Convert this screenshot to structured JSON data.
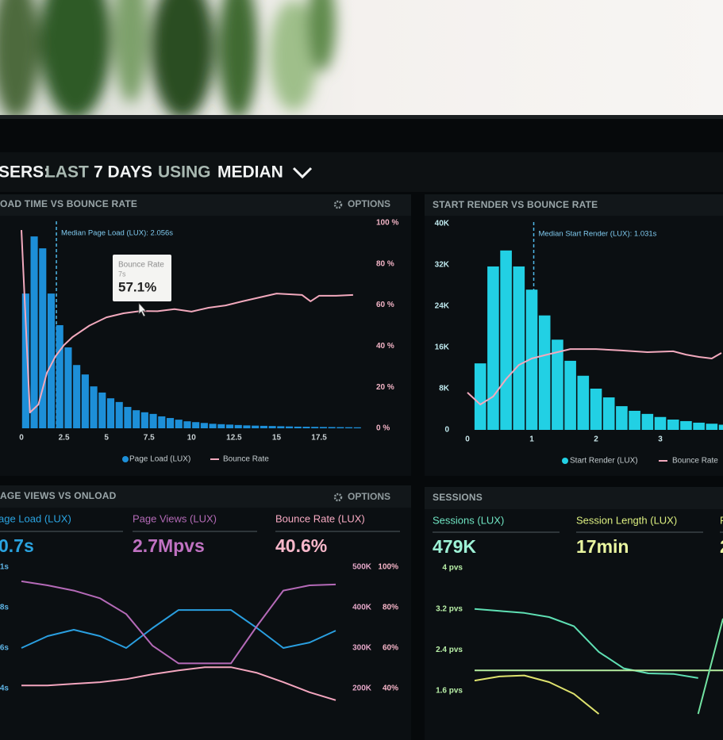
{
  "dashboard": {
    "title_parts": [
      "SERS:",
      "LAST",
      "7 DAYS",
      "USING",
      "MEDIAN"
    ]
  },
  "chart_data": [
    {
      "type": "histogram",
      "title": "OAD TIME VS BOUNCE RATE",
      "options": "OPTIONS",
      "bins": [
        0,
        0.5,
        1,
        1.5,
        2,
        2.5,
        3,
        3.5,
        4,
        4.5,
        5,
        5.5,
        6,
        6.5,
        7,
        7.5,
        8,
        8.5,
        9,
        9.5,
        10,
        10.5,
        11,
        11.5,
        12,
        12.5,
        13,
        13.5,
        14,
        14.5,
        15,
        15.5,
        16,
        16.5,
        17,
        17.5,
        18,
        18.5,
        19,
        19.5,
        20
      ],
      "series": [
        {
          "name": "Page Load (LUX)",
          "color": "#1d8fd8",
          "values": [
            32800,
            46700,
            43800,
            32800,
            25100,
            19700,
            15400,
            13100,
            10200,
            8700,
            7300,
            6400,
            5200,
            4400,
            3900,
            3500,
            2900,
            2500,
            2100,
            1700,
            1500,
            1300,
            1100,
            1000,
            900,
            800,
            700,
            650,
            600,
            550,
            500,
            450,
            400,
            380,
            350,
            320,
            300,
            280,
            260,
            240
          ]
        },
        {
          "name": "Bounce Rate",
          "color": "#f2a9bd",
          "axis": "y2",
          "x": [
            0,
            0.5,
            1,
            1.5,
            2,
            2.5,
            3,
            4,
            5,
            6,
            7,
            8,
            9,
            10,
            11,
            12,
            13,
            14,
            15,
            16.5,
            17,
            17.5,
            18.5,
            19.5
          ],
          "values": [
            96.5,
            7.7,
            11.6,
            27,
            35,
            40.5,
            44.4,
            50,
            54,
            56,
            57.1,
            57,
            58,
            56.8,
            58.7,
            59.8,
            61.8,
            63.7,
            65.6,
            64.9,
            61.8,
            64.5,
            64.5,
            64.9
          ]
        }
      ],
      "xlim": [
        -0.2,
        20.2
      ],
      "xticks": [
        0,
        2.5,
        5,
        7.5,
        10,
        12.5,
        15,
        17.5
      ],
      "ylim": [
        0,
        50000
      ],
      "y2lim": [
        0,
        100
      ],
      "y2ticks": [
        {
          "value": 0,
          "label": "0 %"
        },
        {
          "value": 20,
          "label": "20 %"
        },
        {
          "value": 40,
          "label": "40 %"
        },
        {
          "value": 60,
          "label": "60 %"
        },
        {
          "value": 80,
          "label": "80 %"
        },
        {
          "value": 100,
          "label": "100 %"
        }
      ],
      "annotation": {
        "x": 2.056,
        "label": "Median Page Load (LUX): 2.056s"
      },
      "tooltip": {
        "title": "Bounce Rate",
        "x_label": "7s",
        "value_label": "57.1%"
      }
    },
    {
      "type": "histogram",
      "title": "START RENDER VS BOUNCE RATE",
      "bins": [
        0.1,
        0.3,
        0.5,
        0.7,
        0.9,
        1.1,
        1.3,
        1.5,
        1.7,
        1.9,
        2.1,
        2.3,
        2.5,
        2.7,
        2.9,
        3.1,
        3.3,
        3.5,
        3.7,
        3.9,
        4.1
      ],
      "series": [
        {
          "name": "Start Render (LUX)",
          "color": "#22d0e4",
          "values": [
            12900,
            31700,
            34800,
            31700,
            27200,
            22200,
            17500,
            13400,
            10500,
            8000,
            6300,
            4600,
            3700,
            3100,
            2500,
            2000,
            1700,
            1400,
            1200,
            1000
          ]
        },
        {
          "name": "Bounce Rate",
          "color": "#f2a9bd",
          "axis": "y2",
          "x": [
            0,
            0.2,
            0.4,
            0.6,
            0.8,
            1,
            1.2,
            1.4,
            1.6,
            1.8,
            2,
            2.4,
            2.8,
            3.2,
            3.4,
            3.6,
            3.8,
            3.95
          ],
          "values": [
            18.1,
            12.3,
            16.2,
            24.6,
            31.5,
            34.6,
            36.2,
            37.7,
            39.2,
            39.2,
            39.2,
            38.5,
            37.7,
            38.1,
            36.5,
            35.4,
            34.6,
            37.3
          ]
        }
      ],
      "xlim": [
        -0.1,
        3.97
      ],
      "xticks": [
        0,
        1,
        2,
        3
      ],
      "ylim": [
        0,
        40000
      ],
      "yticks": [
        0,
        {
          "value": 8000,
          "label": "8K"
        },
        {
          "value": 16000,
          "label": "16K"
        },
        {
          "value": 24000,
          "label": "24K"
        },
        {
          "value": 32000,
          "label": "32K"
        },
        {
          "value": 40000,
          "label": "40K"
        }
      ],
      "y2lim": [
        0,
        100
      ],
      "annotation": {
        "x": 1.031,
        "label": "Median Start Render (LUX): 1.031s"
      }
    },
    {
      "type": "line",
      "title": "AGE VIEWS VS ONLOAD",
      "options": "OPTIONS",
      "stats": [
        {
          "label": "age Load (LUX)",
          "value": "0.7s"
        },
        {
          "label": "Page Views (LUX)",
          "value": "2.7Mpvs"
        },
        {
          "label": "Bounce Rate (LUX)",
          "value": "40.6%"
        }
      ],
      "series": [
        {
          "color": "#2a9fe0",
          "values": [
            0.6,
            0.659,
            0.69,
            0.659,
            0.6,
            0.698,
            0.788,
            0.788,
            0.788,
            0.698,
            0.6,
            0.627,
            0.686
          ]
        },
        {
          "color": "#b56ab8",
          "axis": "y2",
          "values": [
            465000,
            455000,
            442000,
            423000,
            384000,
            306000,
            262000,
            262000,
            262000,
            355000,
            442000,
            455000,
            457000
          ]
        },
        {
          "color": "#f4a6bf",
          "axis": "y3",
          "values": [
            41.5,
            41.5,
            42.3,
            43.1,
            44.6,
            47,
            48.9,
            50.5,
            50.5,
            47.7,
            43.1,
            38.1,
            34.2
          ]
        }
      ],
      "ylim": [
        0.4,
        1
      ],
      "yticks": [
        {
          "value": 1,
          "label": "1s"
        },
        {
          "value": 0.8,
          "label": "8s"
        },
        {
          "value": 0.6,
          "label": "6s"
        },
        {
          "value": 0.4,
          "label": "4s"
        }
      ],
      "y2lim": [
        200000,
        500000
      ],
      "y2ticks": [
        {
          "value": 500000,
          "label": "500K"
        },
        {
          "value": 400000,
          "label": "400K"
        },
        {
          "value": 300000,
          "label": "300K"
        },
        {
          "value": 200000,
          "label": "200K"
        }
      ],
      "y3lim": [
        40,
        100
      ],
      "y3ticks": [
        {
          "value": 100,
          "label": "100%"
        },
        {
          "value": 80,
          "label": "80%"
        },
        {
          "value": 60,
          "label": "60%"
        },
        {
          "value": 40,
          "label": "40%"
        }
      ]
    },
    {
      "type": "line",
      "title": "SESSIONS",
      "stats": [
        {
          "label": "Sessions (LUX)",
          "value": "479K"
        },
        {
          "label": "Session Length (LUX)",
          "value": "17min"
        },
        {
          "label": "P",
          "value": "2"
        }
      ],
      "series": [
        {
          "color": "#5fe0b4",
          "values": [
            3.2,
            3.16,
            3.12,
            3.04,
            2.86,
            2.36,
            2.04,
            1.94,
            1.93,
            1.85,
            null
          ]
        },
        {
          "color": "#b6eea0",
          "values": [
            2,
            2,
            2,
            2,
            2,
            2,
            2,
            2,
            2,
            2,
            2
          ]
        },
        {
          "color": "#dfe36e",
          "values": [
            1.8,
            1.88,
            1.9,
            1.77,
            1.54,
            1.15,
            null,
            null,
            null,
            null,
            null
          ]
        },
        {
          "color": "#72e3a2",
          "values": [
            null,
            null,
            null,
            null,
            null,
            null,
            null,
            null,
            null,
            1.15,
            3.01
          ]
        }
      ],
      "ylim": [
        1.6,
        4
      ],
      "yticks": [
        {
          "value": 4,
          "label": "4 pvs"
        },
        {
          "value": 3.2,
          "label": "3.2 pvs"
        },
        {
          "value": 2.4,
          "label": "2.4 pvs"
        },
        {
          "value": 1.6,
          "label": "1.6 pvs"
        }
      ]
    }
  ]
}
